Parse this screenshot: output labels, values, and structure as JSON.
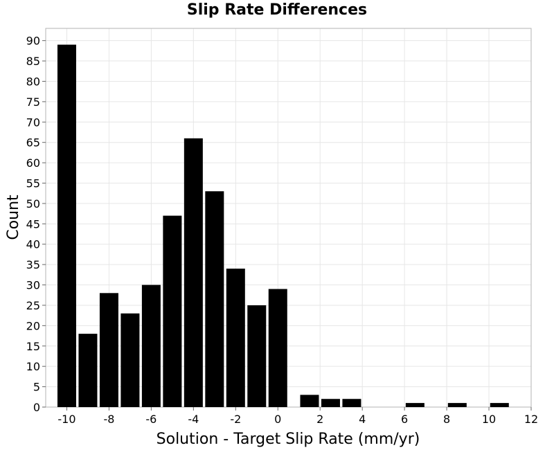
{
  "chart_data": {
    "type": "bar",
    "title": "Slip Rate Differences",
    "xlabel": "Solution - Target Slip Rate (mm/yr)",
    "ylabel": "Count",
    "bin_width": 2,
    "x": [
      -9.0,
      -7.0,
      -5.0,
      -3.0,
      -1.0,
      1.0,
      3.0,
      5.0,
      7.0,
      9.0,
      11.0
    ],
    "bins": [
      {
        "center": -10.0,
        "value": 89
      },
      {
        "center": -9.0,
        "value": 18
      },
      {
        "center": -8.0,
        "value": 28
      },
      {
        "center": -7.0,
        "value": 23
      },
      {
        "center": -6.0,
        "value": 30
      },
      {
        "center": -5.0,
        "value": 47
      },
      {
        "center": -4.0,
        "value": 66
      },
      {
        "center": -3.0,
        "value": 53
      },
      {
        "center": -2.0,
        "value": 34
      },
      {
        "center": -1.0,
        "value": 25
      },
      {
        "center": 0.0,
        "value": 29
      },
      {
        "center": 1.5,
        "value": 3
      },
      {
        "center": 2.5,
        "value": 2
      },
      {
        "center": 3.5,
        "value": 2
      },
      {
        "center": 6.5,
        "value": 1
      },
      {
        "center": 8.5,
        "value": 1
      },
      {
        "center": 10.5,
        "value": 1
      }
    ],
    "xlim": [
      -11,
      12
    ],
    "ylim": [
      0,
      93
    ],
    "xticks": [
      -10,
      -8,
      -6,
      -4,
      -2,
      0,
      2,
      4,
      6,
      8,
      10,
      12
    ],
    "yticks": [
      0,
      5,
      10,
      15,
      20,
      25,
      30,
      35,
      40,
      45,
      50,
      55,
      60,
      65,
      70,
      75,
      80,
      85,
      90
    ],
    "grid": true,
    "colors": {
      "bar": "#000000",
      "grid": "#e6e6e6",
      "frame": "#b3b3b3"
    }
  }
}
